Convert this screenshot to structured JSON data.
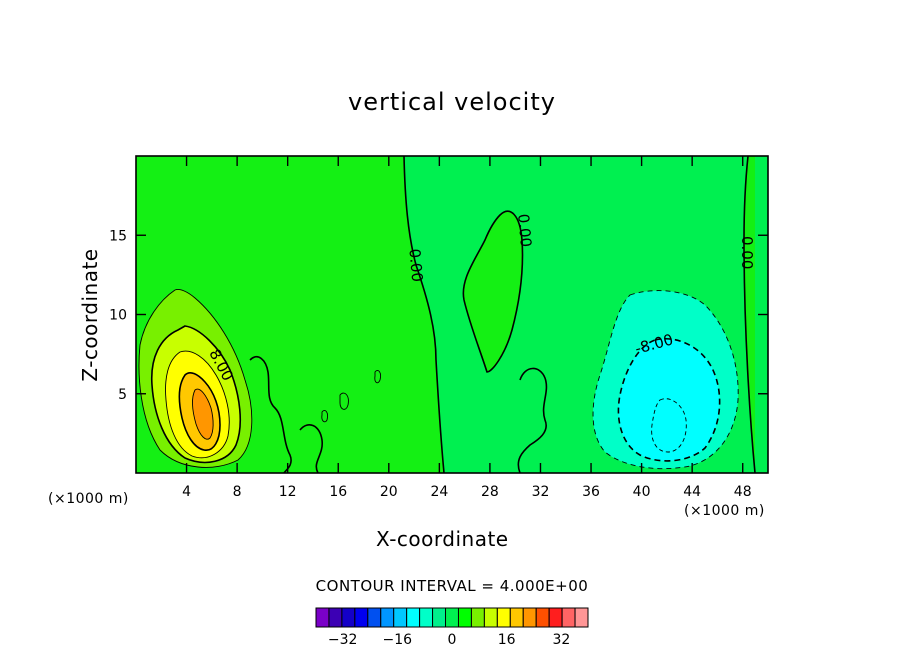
{
  "chart_data": {
    "type": "heatmap",
    "title": "vertical velocity",
    "xlabel": "X-coordinate",
    "ylabel": "Z-coordinate",
    "x_units": "(×1000 m)",
    "xlim": [
      0,
      50
    ],
    "ylim": [
      0,
      20
    ],
    "x_ticks": [
      4,
      8,
      12,
      16,
      20,
      24,
      28,
      32,
      36,
      40,
      44,
      48
    ],
    "y_ticks": [
      5,
      10,
      15
    ],
    "contour_interval_text": "CONTOUR INTERVAL = 4.000E+00",
    "contour_labels": [
      {
        "text": "8.00",
        "x": 6.7,
        "z": 6.8,
        "rotate": 62
      },
      {
        "text": "0.00",
        "x": 22.1,
        "z": 13.1,
        "rotate": 85
      },
      {
        "text": "0.00",
        "x": 30.7,
        "z": 15.3,
        "rotate": 85
      },
      {
        "text": "0.00",
        "x": 48.3,
        "z": 13.9,
        "rotate": 90
      },
      {
        "text": "-8.00",
        "x": 41.0,
        "z": 8.1,
        "rotate": -15
      }
    ],
    "colorbar": {
      "levels": [
        -36,
        -32,
        -28,
        -24,
        -20,
        -16,
        -12,
        -8,
        -4,
        0,
        4,
        8,
        12,
        16,
        20,
        24,
        28,
        32,
        36
      ],
      "colors": [
        "#7a00c8",
        "#3c00b4",
        "#1400c8",
        "#0000f0",
        "#0050f0",
        "#0096ff",
        "#00c8ff",
        "#00ffff",
        "#00ffc8",
        "#00f08c",
        "#00f050",
        "#00ff00",
        "#78f000",
        "#c8ff00",
        "#ffff00",
        "#ffc800",
        "#ff9600",
        "#ff5000",
        "#ff1e1e",
        "#ff6464",
        "#ff9696"
      ],
      "tick_labels": [
        "-32",
        "-16",
        "0",
        "16",
        "32"
      ]
    }
  }
}
